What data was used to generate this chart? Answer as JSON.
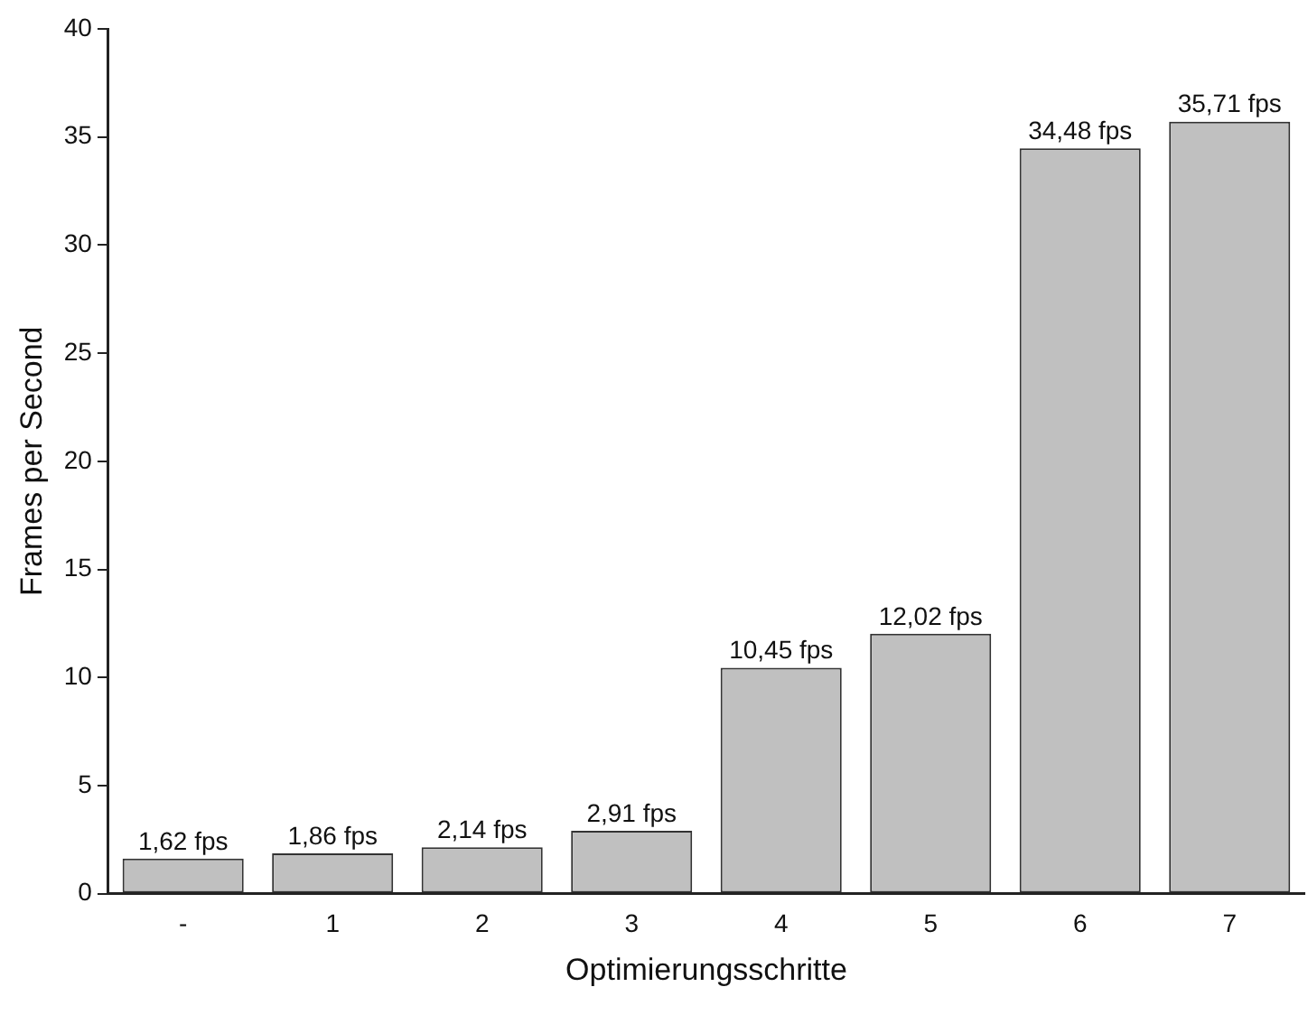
{
  "chart_data": {
    "type": "bar",
    "xlabel": "Optimierungsschritte",
    "ylabel": "Frames per Second",
    "categories": [
      "-",
      "1",
      "2",
      "3",
      "4",
      "5",
      "6",
      "7"
    ],
    "values": [
      1.62,
      1.86,
      2.14,
      2.91,
      10.45,
      12.02,
      34.48,
      35.71
    ],
    "value_labels": [
      "1,62 fps",
      "1,86 fps",
      "2,14 fps",
      "2,91 fps",
      "10,45 fps",
      "12,02 fps",
      "34,48 fps",
      "35,71 fps"
    ],
    "color": "#c0c0c0",
    "ylim": [
      0,
      40
    ],
    "yticks": [
      0,
      5,
      10,
      15,
      20,
      25,
      30,
      35,
      40
    ],
    "grid": false,
    "legend": false
  }
}
